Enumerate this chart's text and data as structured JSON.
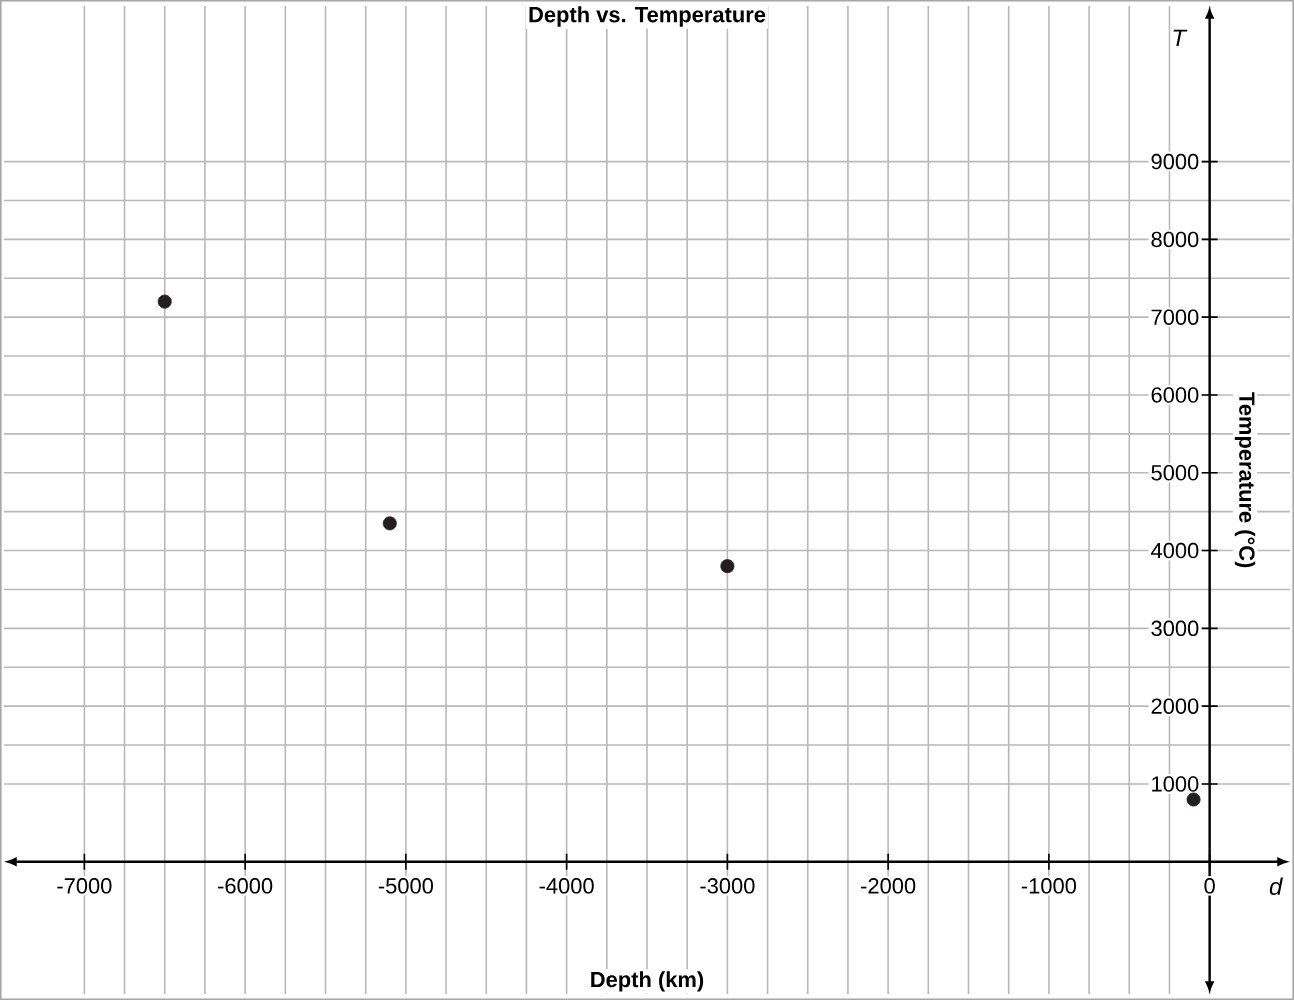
{
  "chart_data": {
    "type": "scatter",
    "title": "Depth vs. Temperature",
    "xlabel": "Depth (km)",
    "ylabel": "Temperature (°C)",
    "annotations": [
      "T",
      "d"
    ],
    "x": [
      -6500,
      -5100,
      -3000,
      -100
    ],
    "series": [
      {
        "color": "#231f20",
        "values": [
          7200,
          4350,
          3800,
          800
        ]
      }
    ],
    "xlim": [
      -7500,
      500
    ],
    "ylim": [
      -1700,
      11000
    ],
    "xticks": [
      -7000,
      -6000,
      -5000,
      -4000,
      -3000,
      -2000,
      -1000,
      0
    ],
    "yticks": [
      1000,
      2000,
      3000,
      4000,
      5000,
      6000,
      7000,
      8000,
      9000
    ],
    "grid": true,
    "marker": "circle"
  }
}
